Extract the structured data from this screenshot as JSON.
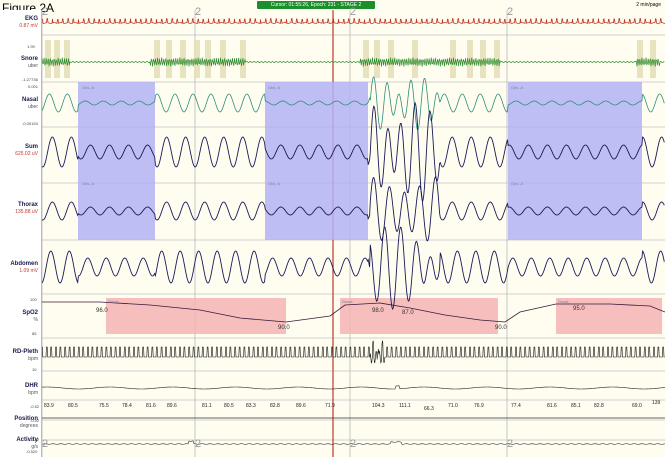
{
  "figure_title": "Figure 2A",
  "status_bar": "Cursor: 01:55:26, Epoch: 231 - STAGE 2",
  "page_size": "2 min/page",
  "channels": [
    {
      "name": "EKG",
      "unit": "0.87 mV",
      "unit_color": "#c0392b"
    },
    {
      "name": "Snore",
      "unit": "uber",
      "unit_color": "#555555"
    },
    {
      "name": "Nasal",
      "unit": "uber",
      "unit_color": "#555555"
    },
    {
      "name": "Sum",
      "unit": "625.02 uV",
      "unit_color": "#c0392b"
    },
    {
      "name": "Thorax",
      "unit": "135.88 uV",
      "unit_color": "#c0392b"
    },
    {
      "name": "Abdomen",
      "unit": "1.09 mV",
      "unit_color": "#c0392b"
    },
    {
      "name": "SpO2",
      "unit": "%",
      "unit_color": "#555555"
    },
    {
      "name": "RD-Pleth",
      "unit": "bpm",
      "unit_color": "#555555"
    },
    {
      "name": "DHR",
      "unit": "bpm",
      "unit_color": "#555555"
    },
    {
      "name": "Position",
      "unit": "degrees",
      "unit_color": "#555555"
    },
    {
      "name": "Activity",
      "unit": "g/s",
      "unit_color": "#555555"
    }
  ],
  "scales": {
    "snore_top": "1.99",
    "snore_bottom": "-1.27736",
    "nasal_top": "0.001",
    "nasal_bottom": "-0.00153",
    "spo2_top": "100",
    "spo2_bottom": "85",
    "pleth_bottom": "10",
    "pos_top": "-0.52",
    "pos_bottom": "-0.52",
    "act_top": "-0.52",
    "act_bottom": "-0.520"
  },
  "stage_label": "2",
  "event_labels": {
    "obstructive": "Obs. A",
    "desat": "Desat",
    "snore": "S"
  },
  "spo2_values": [
    "96.0",
    "90.0",
    "98.0",
    "87.0",
    "90.0",
    "95.0"
  ],
  "heart_rates": [
    "83.9",
    "80.5",
    "75.5",
    "78.4",
    "81.6",
    "89.6",
    "81.1",
    "80.5",
    "83.3",
    "82.8",
    "89.6",
    "71.9",
    "104.3",
    "111.1",
    "66.3",
    "71.0",
    "76.9",
    "77.4",
    "81.6",
    "85.1",
    "82.8",
    "69.0",
    "139"
  ],
  "colors": {
    "apnea_shade": "#b3b3f5",
    "desat_shade": "#f5b3b3",
    "snore_shade": "#e3e0b8",
    "cursor_line": "#c0392b",
    "ekg_trace": "#c0392b",
    "snore_trace": "#2e8b2e",
    "nasal_trace": "#2e8f7a",
    "effort_trace": "#1a1a5a",
    "status_green": "#1b8f2c"
  }
}
